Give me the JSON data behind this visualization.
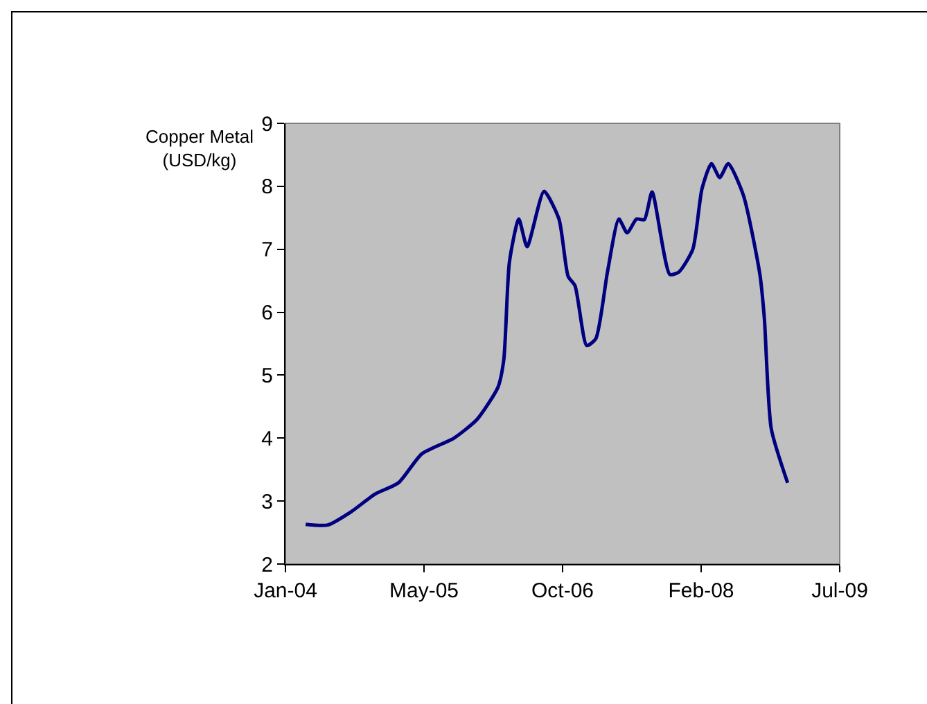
{
  "chart_data": {
    "type": "line",
    "ylabel": "Copper Metal\n(USD/kg)",
    "x": [
      "2004-03-28",
      "2004-06-16",
      "2004-09-08",
      "2004-12-03",
      "2005-02-26",
      "2005-05-21",
      "2005-09-14",
      "2005-12-07",
      "2006-02-20",
      "2006-03-13",
      "2006-04-02",
      "2006-05-06",
      "2006-06-05",
      "2006-08-05",
      "2006-09-28",
      "2006-10-31",
      "2006-11-25",
      "2007-01-06",
      "2007-02-08",
      "2007-03-22",
      "2007-05-02",
      "2007-06-01",
      "2007-07-05",
      "2007-08-02",
      "2007-08-30",
      "2007-11-02",
      "2007-12-05",
      "2008-01-24",
      "2008-02-26",
      "2008-03-31",
      "2008-04-30",
      "2008-05-31",
      "2008-07-25",
      "2008-09-22",
      "2008-10-08",
      "2008-11-02",
      "2008-12-31"
    ],
    "series": [
      {
        "color": "#000080",
        "values": [
          2.63,
          2.62,
          2.83,
          3.11,
          3.29,
          3.75,
          4.0,
          4.3,
          4.81,
          5.25,
          6.79,
          7.48,
          7.04,
          7.92,
          7.48,
          6.57,
          6.42,
          5.47,
          5.58,
          6.64,
          7.48,
          7.26,
          7.48,
          7.47,
          7.91,
          6.6,
          6.64,
          7.0,
          7.96,
          8.36,
          8.14,
          8.36,
          7.85,
          6.6,
          5.91,
          4.15,
          3.29
        ]
      }
    ],
    "xlim": [
      "2004-01-15",
      "2009-07-07"
    ],
    "xticks": [
      {
        "value": "2004-01-15",
        "label": "Jan-04"
      },
      {
        "value": "2005-05-29",
        "label": "May-05"
      },
      {
        "value": "2006-10-11",
        "label": "Oct-06"
      },
      {
        "value": "2008-02-23",
        "label": "Feb-08"
      },
      {
        "value": "2009-07-07",
        "label": "Jul-09"
      }
    ],
    "ylim": [
      2,
      9
    ],
    "yticks": [
      2,
      3,
      4,
      5,
      6,
      7,
      8,
      9
    ],
    "marker": "none",
    "line_style": "solid"
  }
}
